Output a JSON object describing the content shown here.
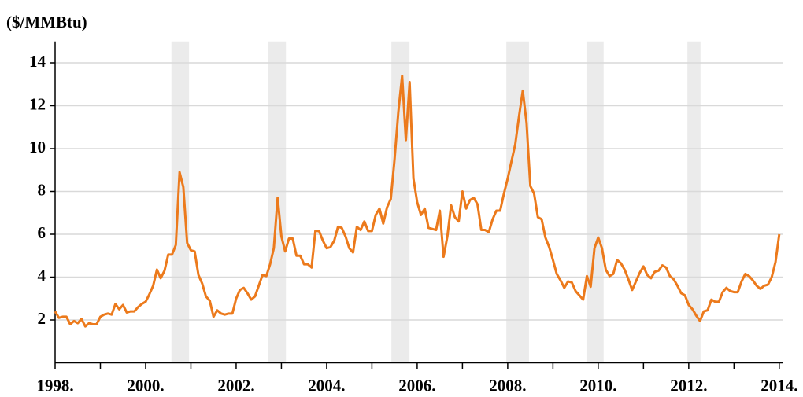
{
  "chart_data": {
    "type": "line",
    "title": "($/MMBtu)",
    "color": "#ec7a1c",
    "grid": true,
    "xlim": [
      1998,
      2014.09
    ],
    "ylim": [
      0,
      15
    ],
    "yticks": [
      2,
      4,
      6,
      8,
      10,
      12,
      14
    ],
    "xticks": [
      {
        "value": 1998,
        "label": "1998."
      },
      {
        "value": 2000,
        "label": "2000."
      },
      {
        "value": 2002,
        "label": "2002."
      },
      {
        "value": 2004,
        "label": "2004."
      },
      {
        "value": 2006,
        "label": "2006."
      },
      {
        "value": 2008,
        "label": "2008."
      },
      {
        "value": 2010,
        "label": "2010."
      },
      {
        "value": 2012,
        "label": "2012."
      },
      {
        "value": 2014,
        "label": "2014."
      }
    ],
    "xminor_ticks": [
      1999,
      2001,
      2003,
      2005,
      2007,
      2009,
      2011,
      2013
    ],
    "shaded_periods": [
      [
        2000.57,
        2000.96
      ],
      [
        2002.71,
        2003.1
      ],
      [
        2005.43,
        2005.83
      ],
      [
        2007.97,
        2008.47
      ],
      [
        2009.74,
        2010.12
      ],
      [
        2011.97,
        2012.26
      ]
    ],
    "x": [
      1998,
      1998.083,
      1998.167,
      1998.25,
      1998.333,
      1998.417,
      1998.5,
      1998.583,
      1998.667,
      1998.75,
      1998.833,
      1998.917,
      1999,
      1999.083,
      1999.167,
      1999.25,
      1999.333,
      1999.417,
      1999.5,
      1999.583,
      1999.667,
      1999.75,
      1999.833,
      1999.917,
      2000,
      2000.083,
      2000.167,
      2000.25,
      2000.333,
      2000.417,
      2000.5,
      2000.583,
      2000.667,
      2000.75,
      2000.833,
      2000.917,
      2001,
      2001.083,
      2001.167,
      2001.25,
      2001.333,
      2001.417,
      2001.5,
      2001.583,
      2001.667,
      2001.75,
      2001.833,
      2001.917,
      2002,
      2002.083,
      2002.167,
      2002.25,
      2002.333,
      2002.417,
      2002.5,
      2002.583,
      2002.667,
      2002.75,
      2002.833,
      2002.917,
      2003,
      2003.083,
      2003.167,
      2003.25,
      2003.333,
      2003.417,
      2003.5,
      2003.583,
      2003.667,
      2003.75,
      2003.833,
      2003.917,
      2004,
      2004.083,
      2004.167,
      2004.25,
      2004.333,
      2004.417,
      2004.5,
      2004.583,
      2004.667,
      2004.75,
      2004.833,
      2004.917,
      2005,
      2005.083,
      2005.167,
      2005.25,
      2005.333,
      2005.417,
      2005.5,
      2005.583,
      2005.667,
      2005.75,
      2005.833,
      2005.917,
      2006,
      2006.083,
      2006.167,
      2006.25,
      2006.333,
      2006.417,
      2006.5,
      2006.583,
      2006.667,
      2006.75,
      2006.833,
      2006.917,
      2007,
      2007.083,
      2007.167,
      2007.25,
      2007.333,
      2007.417,
      2007.5,
      2007.583,
      2007.667,
      2007.75,
      2007.833,
      2007.917,
      2008,
      2008.083,
      2008.167,
      2008.25,
      2008.333,
      2008.417,
      2008.5,
      2008.583,
      2008.667,
      2008.75,
      2008.833,
      2008.917,
      2009,
      2009.083,
      2009.167,
      2009.25,
      2009.333,
      2009.417,
      2009.5,
      2009.583,
      2009.667,
      2009.75,
      2009.833,
      2009.917,
      2010,
      2010.083,
      2010.167,
      2010.25,
      2010.333,
      2010.417,
      2010.5,
      2010.583,
      2010.667,
      2010.75,
      2010.833,
      2010.917,
      2011,
      2011.083,
      2011.167,
      2011.25,
      2011.333,
      2011.417,
      2011.5,
      2011.583,
      2011.667,
      2011.75,
      2011.833,
      2011.917,
      2012,
      2012.083,
      2012.167,
      2012.25,
      2012.333,
      2012.417,
      2012.5,
      2012.583,
      2012.667,
      2012.75,
      2012.833,
      2012.917,
      2013,
      2013.083,
      2013.167,
      2013.25,
      2013.333,
      2013.417,
      2013.5,
      2013.583,
      2013.667,
      2013.75,
      2013.833,
      2013.917,
      2014
    ],
    "values": [
      2.4,
      2.1,
      2.15,
      2.15,
      1.8,
      1.95,
      1.85,
      2.05,
      1.7,
      1.85,
      1.8,
      1.8,
      2.15,
      2.25,
      2.3,
      2.25,
      2.75,
      2.5,
      2.7,
      2.35,
      2.4,
      2.4,
      2.6,
      2.75,
      2.85,
      3.2,
      3.6,
      4.35,
      3.95,
      4.3,
      5.05,
      5.05,
      5.5,
      8.9,
      8.2,
      5.6,
      5.25,
      5.2,
      4.1,
      3.7,
      3.1,
      2.9,
      2.15,
      2.45,
      2.3,
      2.25,
      2.3,
      2.3,
      3.0,
      3.4,
      3.5,
      3.25,
      2.95,
      3.1,
      3.6,
      4.1,
      4.05,
      4.6,
      5.35,
      7.7,
      5.9,
      5.2,
      5.8,
      5.8,
      5.0,
      5.0,
      4.6,
      4.6,
      4.45,
      6.15,
      6.15,
      5.7,
      5.35,
      5.4,
      5.7,
      6.35,
      6.3,
      5.9,
      5.35,
      5.15,
      6.35,
      6.2,
      6.6,
      6.15,
      6.15,
      6.9,
      7.2,
      6.5,
      7.25,
      7.65,
      9.5,
      11.7,
      13.4,
      10.4,
      13.1,
      8.6,
      7.5,
      6.9,
      7.2,
      6.3,
      6.25,
      6.2,
      7.1,
      4.95,
      5.9,
      7.35,
      6.8,
      6.6,
      8.0,
      7.2,
      7.6,
      7.7,
      7.4,
      6.2,
      6.2,
      6.1,
      6.7,
      7.1,
      7.1,
      7.9,
      8.6,
      9.4,
      10.2,
      11.5,
      12.7,
      11.2,
      8.25,
      7.9,
      6.8,
      6.7,
      5.85,
      5.4,
      4.8,
      4.15,
      3.85,
      3.5,
      3.8,
      3.75,
      3.35,
      3.15,
      2.95,
      4.05,
      3.55,
      5.35,
      5.85,
      5.35,
      4.35,
      4.05,
      4.15,
      4.8,
      4.65,
      4.35,
      3.9,
      3.4,
      3.8,
      4.2,
      4.5,
      4.1,
      3.95,
      4.25,
      4.3,
      4.55,
      4.45,
      4.05,
      3.9,
      3.6,
      3.25,
      3.15,
      2.7,
      2.5,
      2.2,
      1.95,
      2.4,
      2.45,
      2.95,
      2.85,
      2.85,
      3.3,
      3.5,
      3.35,
      3.3,
      3.3,
      3.8,
      4.15,
      4.05,
      3.85,
      3.6,
      3.45,
      3.6,
      3.65,
      4.0,
      4.7,
      6.0
    ]
  }
}
